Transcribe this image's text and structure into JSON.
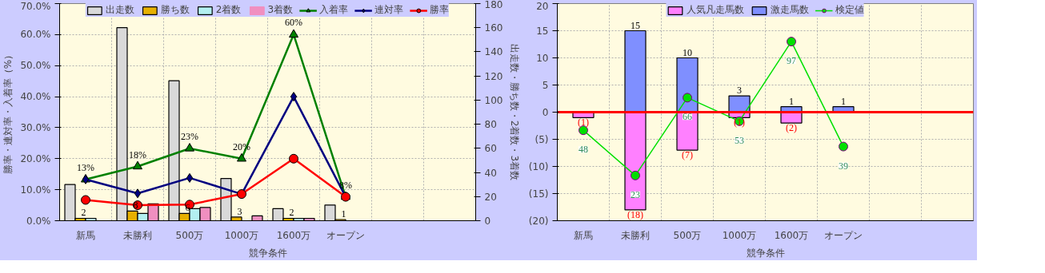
{
  "chart_data": [
    {
      "type": "bar",
      "categories": [
        "新馬",
        "未勝利",
        "500万",
        "1000万",
        "1600万",
        "オープン",
        null,
        null
      ],
      "xlabel": "競争条件",
      "ylabel": "勝率・連対率・入着率（%）",
      "y2label": "出走数・勝ち数・2着数・3着数",
      "ylim": [
        0,
        70
      ],
      "yticks": [
        {
          "value": 0,
          "label": "0.0%"
        },
        {
          "value": 10,
          "label": "10.0%"
        },
        {
          "value": 20,
          "label": "20.0%"
        },
        {
          "value": 30,
          "label": "30.0%"
        },
        {
          "value": 40,
          "label": "40.0%"
        },
        {
          "value": 50,
          "label": "50.0%"
        },
        {
          "value": 60,
          "label": "60.0%"
        },
        {
          "value": 70,
          "label": "70.0%"
        }
      ],
      "y2lim": [
        0,
        180
      ],
      "y2ticks": [
        0,
        20,
        40,
        60,
        80,
        100,
        120,
        140,
        160,
        180
      ],
      "grid": true,
      "legend": "top",
      "series": [
        {
          "name": "出走数",
          "axis": "y2",
          "color": "#d9d9d9",
          "values": [
            30,
            160,
            116,
            35,
            10,
            13,
            null,
            null
          ]
        },
        {
          "name": "勝ち数",
          "axis": "y2",
          "color": "#e6b000",
          "values": [
            2,
            8,
            6,
            3,
            2,
            1,
            null,
            null
          ],
          "value_labels": [
            "2",
            "8",
            "6",
            "3",
            "2",
            "1",
            null,
            null
          ]
        },
        {
          "name": "2着数",
          "axis": "y2",
          "color": "#b3f0f0",
          "values": [
            2,
            6,
            10,
            0,
            2,
            0,
            null,
            null
          ]
        },
        {
          "name": "3着数",
          "axis": "y2",
          "color": "#f08fc0",
          "values": [
            0,
            14,
            11,
            4,
            2,
            0,
            null,
            null
          ]
        },
        {
          "name": "入着率",
          "type": "line",
          "color": "#008000",
          "marker": "triangle",
          "values": [
            13.3,
            17.5,
            23.3,
            20,
            60,
            7.7,
            null,
            null
          ],
          "value_labels": [
            "13%",
            "18%",
            "23%",
            "20%",
            "60%",
            "8%",
            null,
            null
          ]
        },
        {
          "name": "連対率",
          "type": "line",
          "color": "#000080",
          "marker": "diamond",
          "values": [
            13.3,
            8.8,
            13.8,
            8.6,
            40,
            7.7,
            null,
            null
          ]
        },
        {
          "name": "勝率",
          "type": "line",
          "color": "#ff0000",
          "marker": "circle",
          "values": [
            6.7,
            5.0,
            5.2,
            8.6,
            20,
            7.7,
            null,
            null
          ]
        }
      ]
    },
    {
      "type": "bar",
      "stacked": true,
      "categories": [
        "新馬",
        "未勝利",
        "500万",
        "1000万",
        "1600万",
        "オープン",
        null,
        null
      ],
      "xlabel": "競争条件",
      "ylim": [
        -20,
        20
      ],
      "yticks": [
        20,
        15,
        10,
        5,
        0,
        {
          "value": -5,
          "label": "(5)"
        },
        {
          "value": -10,
          "label": "(10)"
        },
        {
          "value": -15,
          "label": "(15)"
        },
        {
          "value": -20,
          "label": "(20)"
        }
      ],
      "y2lim": [
        -2,
        118
      ],
      "grid": true,
      "legend": "top",
      "ref_lines": [
        {
          "axis": "y",
          "value": 0,
          "color": "#ff0000"
        }
      ],
      "series": [
        {
          "name": "人気凡走馬数",
          "color": "#ff80ff",
          "values": [
            -1,
            -18,
            -7,
            -1,
            -2,
            null,
            null,
            null
          ],
          "value_labels": [
            "(1)",
            "(18)",
            "(7)",
            "(1)",
            "(2)",
            null,
            null,
            null
          ]
        },
        {
          "name": "激走馬数",
          "color": "#7f8fff",
          "values": [
            null,
            15,
            10,
            3,
            1,
            1,
            null,
            null
          ],
          "value_labels": [
            null,
            "15",
            "10",
            "3",
            "1",
            "1",
            null,
            null
          ]
        },
        {
          "name": "検定値",
          "type": "line",
          "axis": "y2",
          "color": "#00e000",
          "marker": "circle",
          "values": [
            48,
            23,
            66,
            53,
            97,
            39,
            null,
            null
          ],
          "value_labels": [
            "48",
            "23",
            "66",
            "53",
            "97",
            "39",
            null,
            null
          ]
        }
      ]
    }
  ]
}
